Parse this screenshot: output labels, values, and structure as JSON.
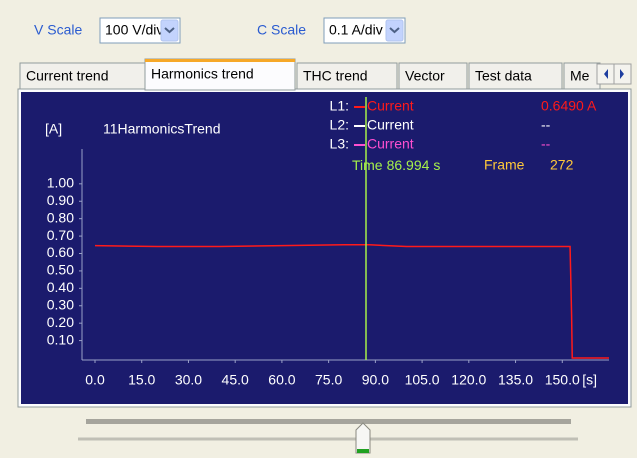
{
  "toolbar": {
    "v_scale_label": "V Scale",
    "v_scale_value": "100 V/div",
    "c_scale_label": "C Scale",
    "c_scale_value": "0.1 A/div"
  },
  "tabs": [
    "Current trend",
    "Harmonics trend",
    "THC trend",
    "Vector",
    "Test data",
    "Me"
  ],
  "active_tab": 1,
  "chart_data": {
    "type": "line",
    "title": "11HarmonicsTrend",
    "y_label": "[A]",
    "x_unit": "[s]",
    "x": [
      0,
      20,
      40,
      60,
      80,
      88,
      100,
      120,
      140,
      152.5,
      153,
      153.2,
      165
    ],
    "series": [
      {
        "label": "L1:",
        "name": "Current",
        "color": "#ff1a1a",
        "reading": "0.6490 A",
        "values": [
          0.645,
          0.64,
          0.64,
          0.645,
          0.65,
          0.65,
          0.64,
          0.64,
          0.64,
          0.64,
          0.24,
          0,
          0
        ]
      },
      {
        "label": "L2:",
        "name": "Current",
        "color": "#ffffff",
        "reading": "--"
      },
      {
        "label": "L3:",
        "name": "Current",
        "color": "#ff4fd0",
        "reading": "--"
      }
    ],
    "cursor": {
      "label": "Time",
      "value": 86.994,
      "unit": "s",
      "color": "#a6f04a"
    },
    "frame": {
      "label": "Frame",
      "value": 272
    },
    "xlim": [
      0,
      165
    ],
    "ylim": [
      0,
      1.2
    ],
    "xticks": [
      {
        "value": 0,
        "label": "0.0"
      },
      {
        "value": 15,
        "label": "15.0"
      },
      {
        "value": 30,
        "label": "30.0"
      },
      {
        "value": 45,
        "label": "45.0"
      },
      {
        "value": 60,
        "label": "60.0"
      },
      {
        "value": 75,
        "label": "75.0"
      },
      {
        "value": 90,
        "label": "90.0"
      },
      {
        "value": 105,
        "label": "105.0"
      },
      {
        "value": 120,
        "label": "120.0"
      },
      {
        "value": 135,
        "label": "135.0"
      },
      {
        "value": 150,
        "label": "150.0"
      }
    ],
    "yticks": [
      {
        "value": 0.1,
        "label": "0.10"
      },
      {
        "value": 0.2,
        "label": "0.20"
      },
      {
        "value": 0.3,
        "label": "0.30"
      },
      {
        "value": 0.4,
        "label": "0.40"
      },
      {
        "value": 0.5,
        "label": "0.50"
      },
      {
        "value": 0.6,
        "label": "0.60"
      },
      {
        "value": 0.7,
        "label": "0.70"
      },
      {
        "value": 0.8,
        "label": "0.80"
      },
      {
        "value": 0.9,
        "label": "0.90"
      },
      {
        "value": 1,
        "label": "1.00"
      }
    ]
  }
}
